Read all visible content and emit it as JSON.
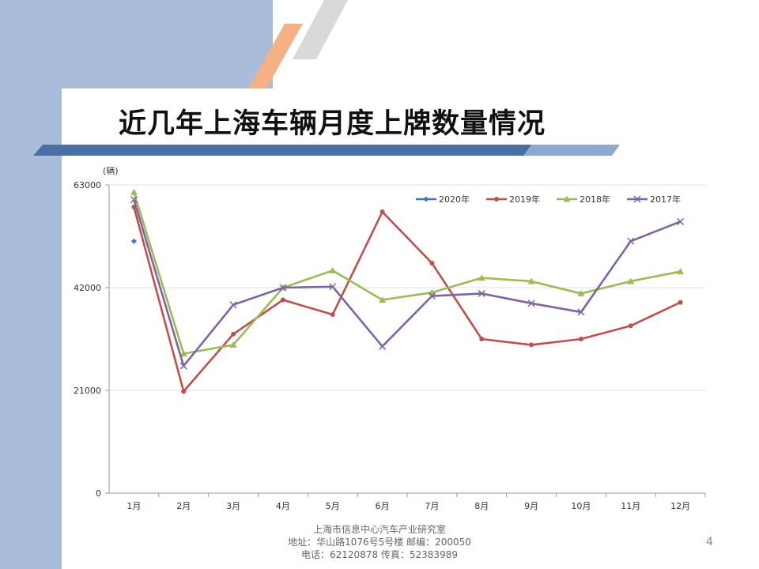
{
  "slide": {
    "title": "近几年上海车辆月度上牌数量情况",
    "page_number": "4",
    "footer": {
      "line1": "上海市信息中心汽车产业研究室",
      "line2": "地址：华山路1076号5号楼    邮编：200050",
      "line3": "电话：62120878  传真：52383989"
    },
    "colors": {
      "band": "#a9bcd9",
      "orange_stripe": "#f4b183",
      "grey_stripe": "#d9d9d9",
      "title_bar": "#4a6fa5"
    }
  },
  "chart_data": {
    "type": "line",
    "unit_label": "(辆)",
    "categories": [
      "1月",
      "2月",
      "3月",
      "4月",
      "5月",
      "6月",
      "7月",
      "8月",
      "9月",
      "10月",
      "11月",
      "12月"
    ],
    "y_ticks": [
      "0",
      "21000",
      "42000",
      "63000"
    ],
    "ylim": [
      0,
      63000
    ],
    "grid": true,
    "legend_position": "top-right",
    "series": [
      {
        "name": "2020年",
        "color": "#4472c4",
        "marker": "diamond",
        "values": [
          51500,
          null,
          null,
          null,
          null,
          null,
          null,
          null,
          null,
          null,
          null,
          null
        ]
      },
      {
        "name": "2019年",
        "color": "#c0504d",
        "marker": "circle",
        "values": [
          58500,
          20800,
          32500,
          39500,
          36500,
          57500,
          47000,
          31500,
          30300,
          31500,
          34200,
          39000
        ]
      },
      {
        "name": "2018年",
        "color": "#9bbb59",
        "marker": "triangle",
        "values": [
          61500,
          28500,
          30300,
          42000,
          45500,
          39500,
          41000,
          44000,
          43300,
          40800,
          43300,
          45300
        ]
      },
      {
        "name": "2017年",
        "color": "#8064a2",
        "marker": "x",
        "values": [
          60000,
          26000,
          38500,
          42000,
          42200,
          30000,
          40300,
          40800,
          38800,
          37000,
          51500,
          55500
        ]
      }
    ]
  }
}
